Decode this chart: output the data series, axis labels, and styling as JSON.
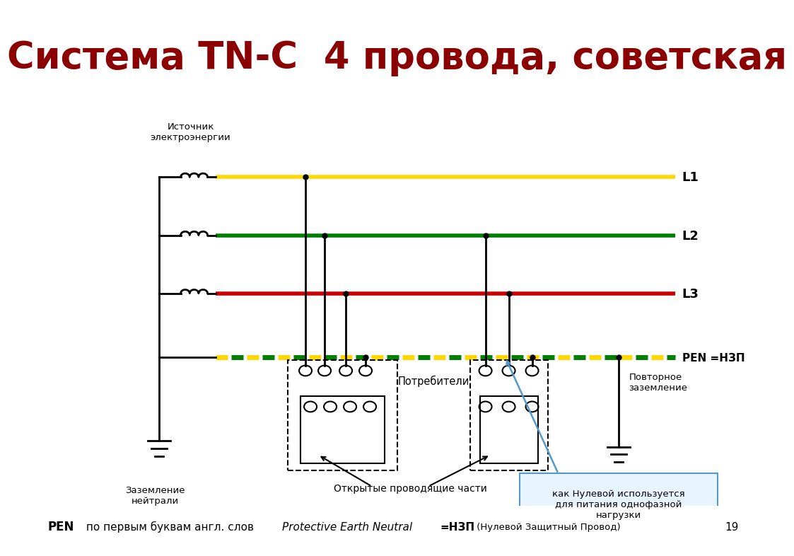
{
  "title": "Система TN-C  4 провода, советская",
  "title_color": "#8B0000",
  "title_bg": "#FFFF00",
  "title_fontsize": 38,
  "bottom_text_bold": "PEN",
  "bottom_text_normal": " по первым буквам англ. слов ",
  "bottom_text_italic": "Protective Earth Neutral",
  "bottom_text_equals": "=НЗП",
  "bottom_text_small": " (Нулевой Защитный Провод)",
  "page_number": "19",
  "source_label": "Источник\nэлектроэнергии",
  "ground_label": "Заземление\nнейтрали",
  "consumers_label": "Потребители",
  "open_parts_label": "Открытые проводящие части",
  "pen_label": "PEN =НЗП",
  "repeat_ground_label": "Повторное\nзаземление",
  "note_text": "как Нулевой используется\nдля питания однофазной\nнагрузки",
  "line_L1_color": "#FFD700",
  "line_L2_color": "#008000",
  "line_L3_color": "#CC0000",
  "line_PEN_color_yellow": "#FFD700",
  "line_PEN_color_green": "#008000",
  "wire_color": "#000000",
  "bg_color": "#FFFFFF",
  "note_border_color": "#5599CC",
  "note_bg_color": "#E8F4FF",
  "arrow_color": "#5599CC"
}
